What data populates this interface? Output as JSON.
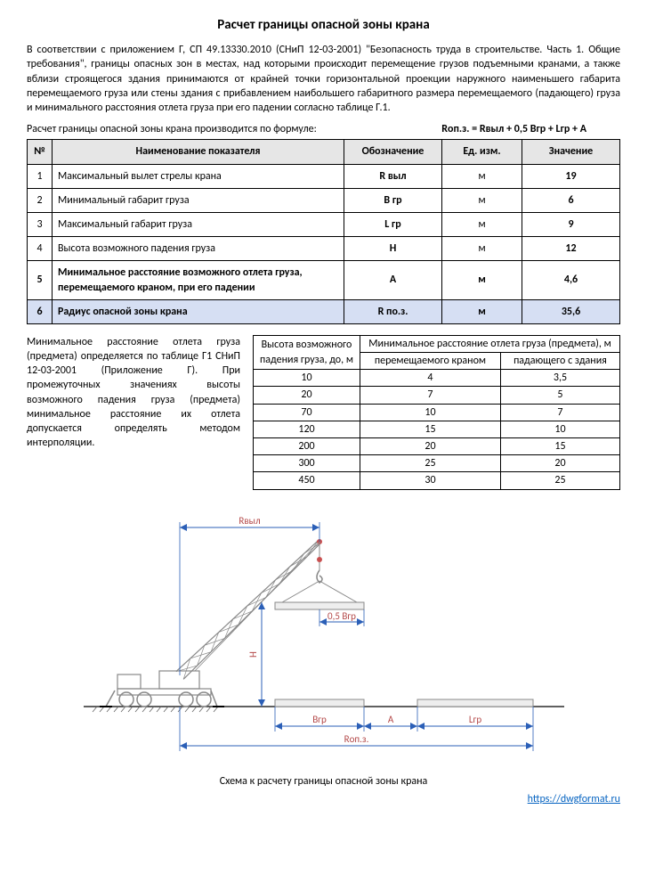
{
  "title": "Расчет границы опасной зоны крана",
  "intro_paragraph": "В соответствии с приложением Г, СП 49.13330.2010 (СНиП 12-03-2001) \"Безопасность труда в строительстве. Часть 1. Общие требования\", границы опасных зон в местах, над которыми происходит перемещение грузов подъемными кранами, а также вблизи строящегося здания принимаются от крайней точки горизонтальной проекции наружного наименьшего габарита перемещаемого груза или стены здания с прибавлением наибольшего габаритного размера перемещаемого (падающего) груза и минимального расстояния отлета груза при его падении согласно таблице Г.1.",
  "formula_text": "Расчет границы опасной зоны крана производится по формуле:",
  "formula": "Rоп.з. = Rвыл + 0,5 Bгр + Lгр + A",
  "main_table": {
    "headers": [
      "№",
      "Наименование показателя",
      "Обозначение",
      "Ед. изм.",
      "Значение"
    ],
    "rows": [
      {
        "n": "1",
        "name": "Максимальный вылет стрелы крана",
        "sym": "R выл",
        "unit": "м",
        "val": "19",
        "bold": false,
        "hl": false
      },
      {
        "n": "2",
        "name": "Минимальный габарит груза",
        "sym": "B гр",
        "unit": "м",
        "val": "6",
        "bold": false,
        "hl": false
      },
      {
        "n": "3",
        "name": "Максимальный габарит груза",
        "sym": "L гр",
        "unit": "м",
        "val": "9",
        "bold": false,
        "hl": false
      },
      {
        "n": "4",
        "name": "Высота возможного падения груза",
        "sym": "H",
        "unit": "м",
        "val": "12",
        "bold": false,
        "hl": false
      },
      {
        "n": "5",
        "name": "Минимальное расстояние возможного отлета груза, перемещаемого краном, при его падении",
        "sym": "A",
        "unit": "м",
        "val": "4,6",
        "bold": true,
        "hl": false
      },
      {
        "n": "6",
        "name": "Радиус опасной зоны крана",
        "sym": "R по.з.",
        "unit": "м",
        "val": "35,6",
        "bold": true,
        "hl": true
      }
    ]
  },
  "mid_text": "Минимальное расстояние отлета груза (предмета) определяется по таблице Г1 СНиП 12-03-2001 (Приложение Г). При промежуточных значениях высоты возможного падения груза (предмета) минимальное расстояние их отлета допускается определять методом интерполяции.",
  "ref_table": {
    "header_top_left": "Высота возможного падения груза, до, м",
    "header_top_right": "Минимальное расстояние отлета груза (предмета), м",
    "header_sub1": "перемещаемого краном",
    "header_sub2": "падающего с здания",
    "rows": [
      [
        "10",
        "4",
        "3,5"
      ],
      [
        "20",
        "7",
        "5"
      ],
      [
        "70",
        "10",
        "7"
      ],
      [
        "120",
        "15",
        "10"
      ],
      [
        "200",
        "20",
        "15"
      ],
      [
        "300",
        "25",
        "20"
      ],
      [
        "450",
        "30",
        "25"
      ]
    ]
  },
  "diagram": {
    "labels": {
      "Rvyl": "Rвыл",
      "H": "H",
      "halfBgr": "0,5 Bгр",
      "Bgr": "Bгр",
      "A": "A",
      "Lgr": "Lгр",
      "Ropz": "Rоп.з."
    },
    "colors": {
      "dim_line": "#2b5fb7",
      "dim_text": "#b34747",
      "crane": "#888888",
      "crane_red": "#c94f4f",
      "ground_hatch": "#666666"
    }
  },
  "caption": "Схема к расчету границы опасной зоны крана",
  "footer_url": "https://dwgformat.ru"
}
